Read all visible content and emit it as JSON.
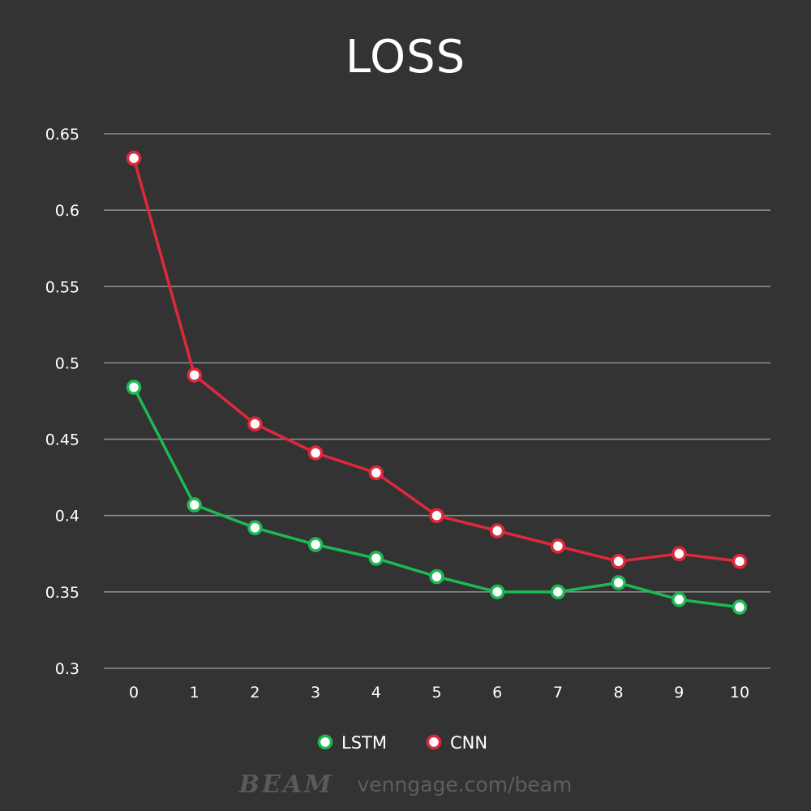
{
  "chart_data": {
    "type": "line",
    "title": "LOSS",
    "xlabel": "",
    "ylabel": "",
    "categories": [
      "0",
      "1",
      "2",
      "3",
      "4",
      "5",
      "6",
      "7",
      "8",
      "9",
      "10"
    ],
    "x": [
      0,
      1,
      2,
      3,
      4,
      5,
      6,
      7,
      8,
      9,
      10
    ],
    "y_ticks": [
      "0.3",
      "0.35",
      "0.4",
      "0.45",
      "0.5",
      "0.55",
      "0.6",
      "0.65"
    ],
    "ylim": [
      0.3,
      0.65
    ],
    "grid": true,
    "legend_position": "bottom",
    "series": [
      {
        "name": "LSTM",
        "color": "#1db954",
        "values": [
          0.484,
          0.407,
          0.392,
          0.381,
          0.372,
          0.36,
          0.35,
          0.35,
          0.356,
          0.345,
          0.34
        ]
      },
      {
        "name": "CNN",
        "color": "#e0283c",
        "values": [
          0.634,
          0.492,
          0.46,
          0.441,
          0.428,
          0.4,
          0.39,
          0.38,
          0.37,
          0.375,
          0.37
        ]
      }
    ]
  },
  "footer": {
    "brand": "BEAM",
    "url": "venngage.com/beam"
  },
  "colors": {
    "background": "#333333",
    "gridline": "#8a8a8a",
    "text": "#ffffff",
    "watermark": "#5e5e5e"
  }
}
